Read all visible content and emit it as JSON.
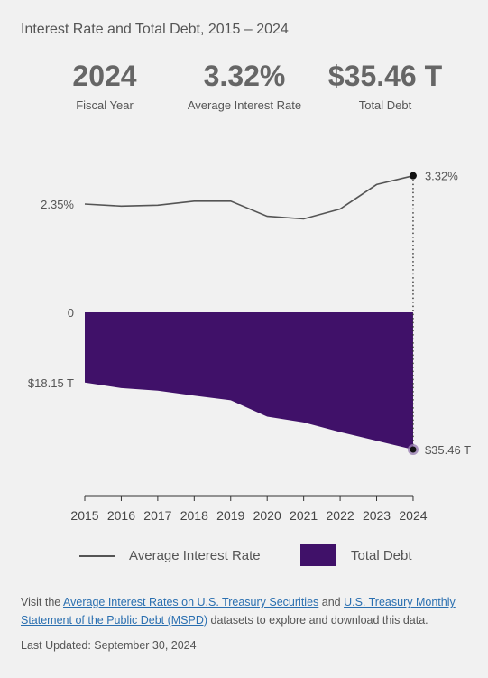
{
  "title": "Interest Rate and Total Debt, 2015 – 2024",
  "kpis": [
    {
      "value": "2024",
      "label": "Fiscal Year"
    },
    {
      "value": "3.32%",
      "label": "Average Interest Rate"
    },
    {
      "value": "$35.46 T",
      "label": "Total Debt"
    }
  ],
  "colors": {
    "debt_fill": "#401169",
    "rate_line": "#555555",
    "link": "#2a6fb0"
  },
  "chart_data": {
    "type": "line",
    "title": "Interest Rate and Total Debt, 2015 – 2024",
    "categories": [
      "2015",
      "2016",
      "2017",
      "2018",
      "2019",
      "2020",
      "2021",
      "2022",
      "2023",
      "2024"
    ],
    "series": [
      {
        "name": "Average Interest Rate",
        "type": "line",
        "unit": "%",
        "values": [
          2.35,
          2.28,
          2.31,
          2.45,
          2.45,
          1.93,
          1.84,
          2.18,
          3.02,
          3.32
        ]
      },
      {
        "name": "Total Debt",
        "type": "area",
        "unit": "T",
        "values": [
          18.15,
          19.57,
          20.24,
          21.52,
          22.72,
          26.95,
          28.43,
          30.93,
          33.17,
          35.46
        ]
      }
    ],
    "y_labels": {
      "rate_ref": "2.35%",
      "zero": "0",
      "debt_ref": "$18.15 T"
    },
    "end_labels": {
      "rate": "3.32%",
      "debt": "$35.46 T"
    },
    "grid": false,
    "legend_position": "bottom"
  },
  "legend": {
    "line_label": "Average Interest Rate",
    "area_label": "Total Debt"
  },
  "footnote": {
    "prefix": "Visit the ",
    "link1": "Average Interest Rates on U.S. Treasury Securities",
    "middle": " and ",
    "link2": "U.S. Treasury Monthly Statement of the Public Debt (MSPD)",
    "suffix": " datasets to explore and download this data."
  },
  "last_updated": "Last Updated: September 30, 2024"
}
